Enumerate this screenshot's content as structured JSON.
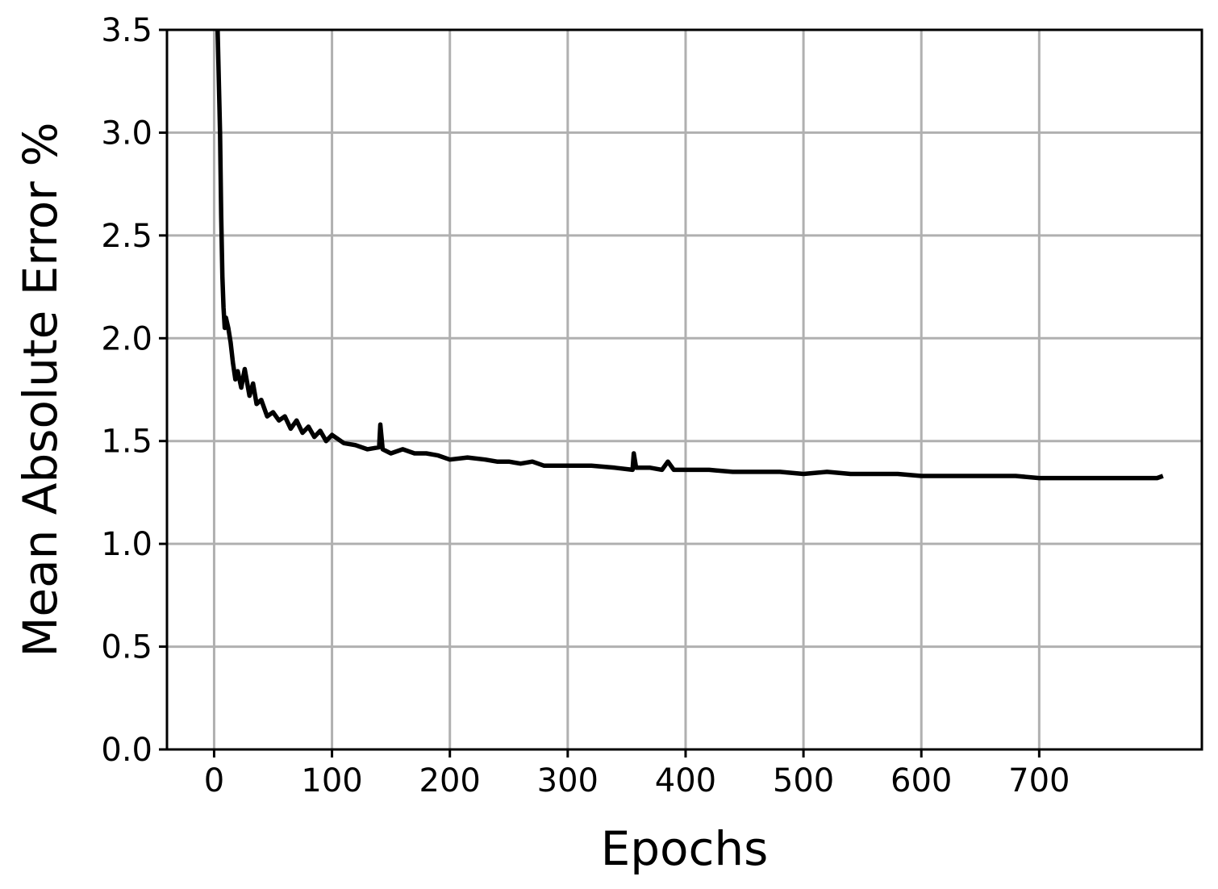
{
  "chart_data": {
    "type": "line",
    "title": "",
    "xlabel": "Epochs",
    "ylabel": "Mean Absolute Error %",
    "xlim": [
      -40,
      838
    ],
    "ylim": [
      0.0,
      3.5
    ],
    "xticks": [
      0,
      100,
      200,
      300,
      400,
      500,
      600,
      700
    ],
    "xtick_labels": [
      "0",
      "100",
      "200",
      "300",
      "400",
      "500",
      "600",
      "700"
    ],
    "yticks": [
      0.0,
      0.5,
      1.0,
      1.5,
      2.0,
      2.5,
      3.0,
      3.5
    ],
    "ytick_labels": [
      "0.0",
      "0.5",
      "1.0",
      "1.5",
      "2.0",
      "2.5",
      "3.0",
      "3.5"
    ],
    "grid": true,
    "legend": "none",
    "series": [
      {
        "color": "#000000",
        "x": [
          3,
          5,
          6,
          7,
          8,
          9,
          10,
          12,
          14,
          16,
          18,
          20,
          23,
          26,
          30,
          33,
          36,
          40,
          45,
          50,
          55,
          60,
          65,
          70,
          75,
          80,
          85,
          90,
          95,
          100,
          110,
          120,
          130,
          140,
          141,
          143,
          150,
          160,
          170,
          180,
          190,
          200,
          215,
          230,
          240,
          250,
          260,
          270,
          280,
          290,
          300,
          320,
          340,
          355,
          356,
          358,
          370,
          380,
          385,
          390,
          400,
          420,
          440,
          460,
          480,
          500,
          520,
          540,
          560,
          580,
          600,
          620,
          640,
          660,
          680,
          700,
          720,
          740,
          760,
          780,
          800,
          805
        ],
        "y": [
          3.5,
          3.0,
          2.6,
          2.3,
          2.15,
          2.05,
          2.1,
          2.05,
          1.98,
          1.88,
          1.8,
          1.84,
          1.76,
          1.85,
          1.72,
          1.78,
          1.68,
          1.7,
          1.62,
          1.64,
          1.6,
          1.62,
          1.56,
          1.6,
          1.54,
          1.57,
          1.52,
          1.55,
          1.5,
          1.53,
          1.49,
          1.48,
          1.46,
          1.47,
          1.58,
          1.46,
          1.44,
          1.46,
          1.44,
          1.44,
          1.43,
          1.41,
          1.42,
          1.41,
          1.4,
          1.4,
          1.39,
          1.4,
          1.38,
          1.38,
          1.38,
          1.38,
          1.37,
          1.36,
          1.44,
          1.37,
          1.37,
          1.36,
          1.4,
          1.36,
          1.36,
          1.36,
          1.35,
          1.35,
          1.35,
          1.34,
          1.35,
          1.34,
          1.34,
          1.34,
          1.33,
          1.33,
          1.33,
          1.33,
          1.33,
          1.32,
          1.32,
          1.32,
          1.32,
          1.32,
          1.32,
          1.33
        ]
      }
    ]
  }
}
